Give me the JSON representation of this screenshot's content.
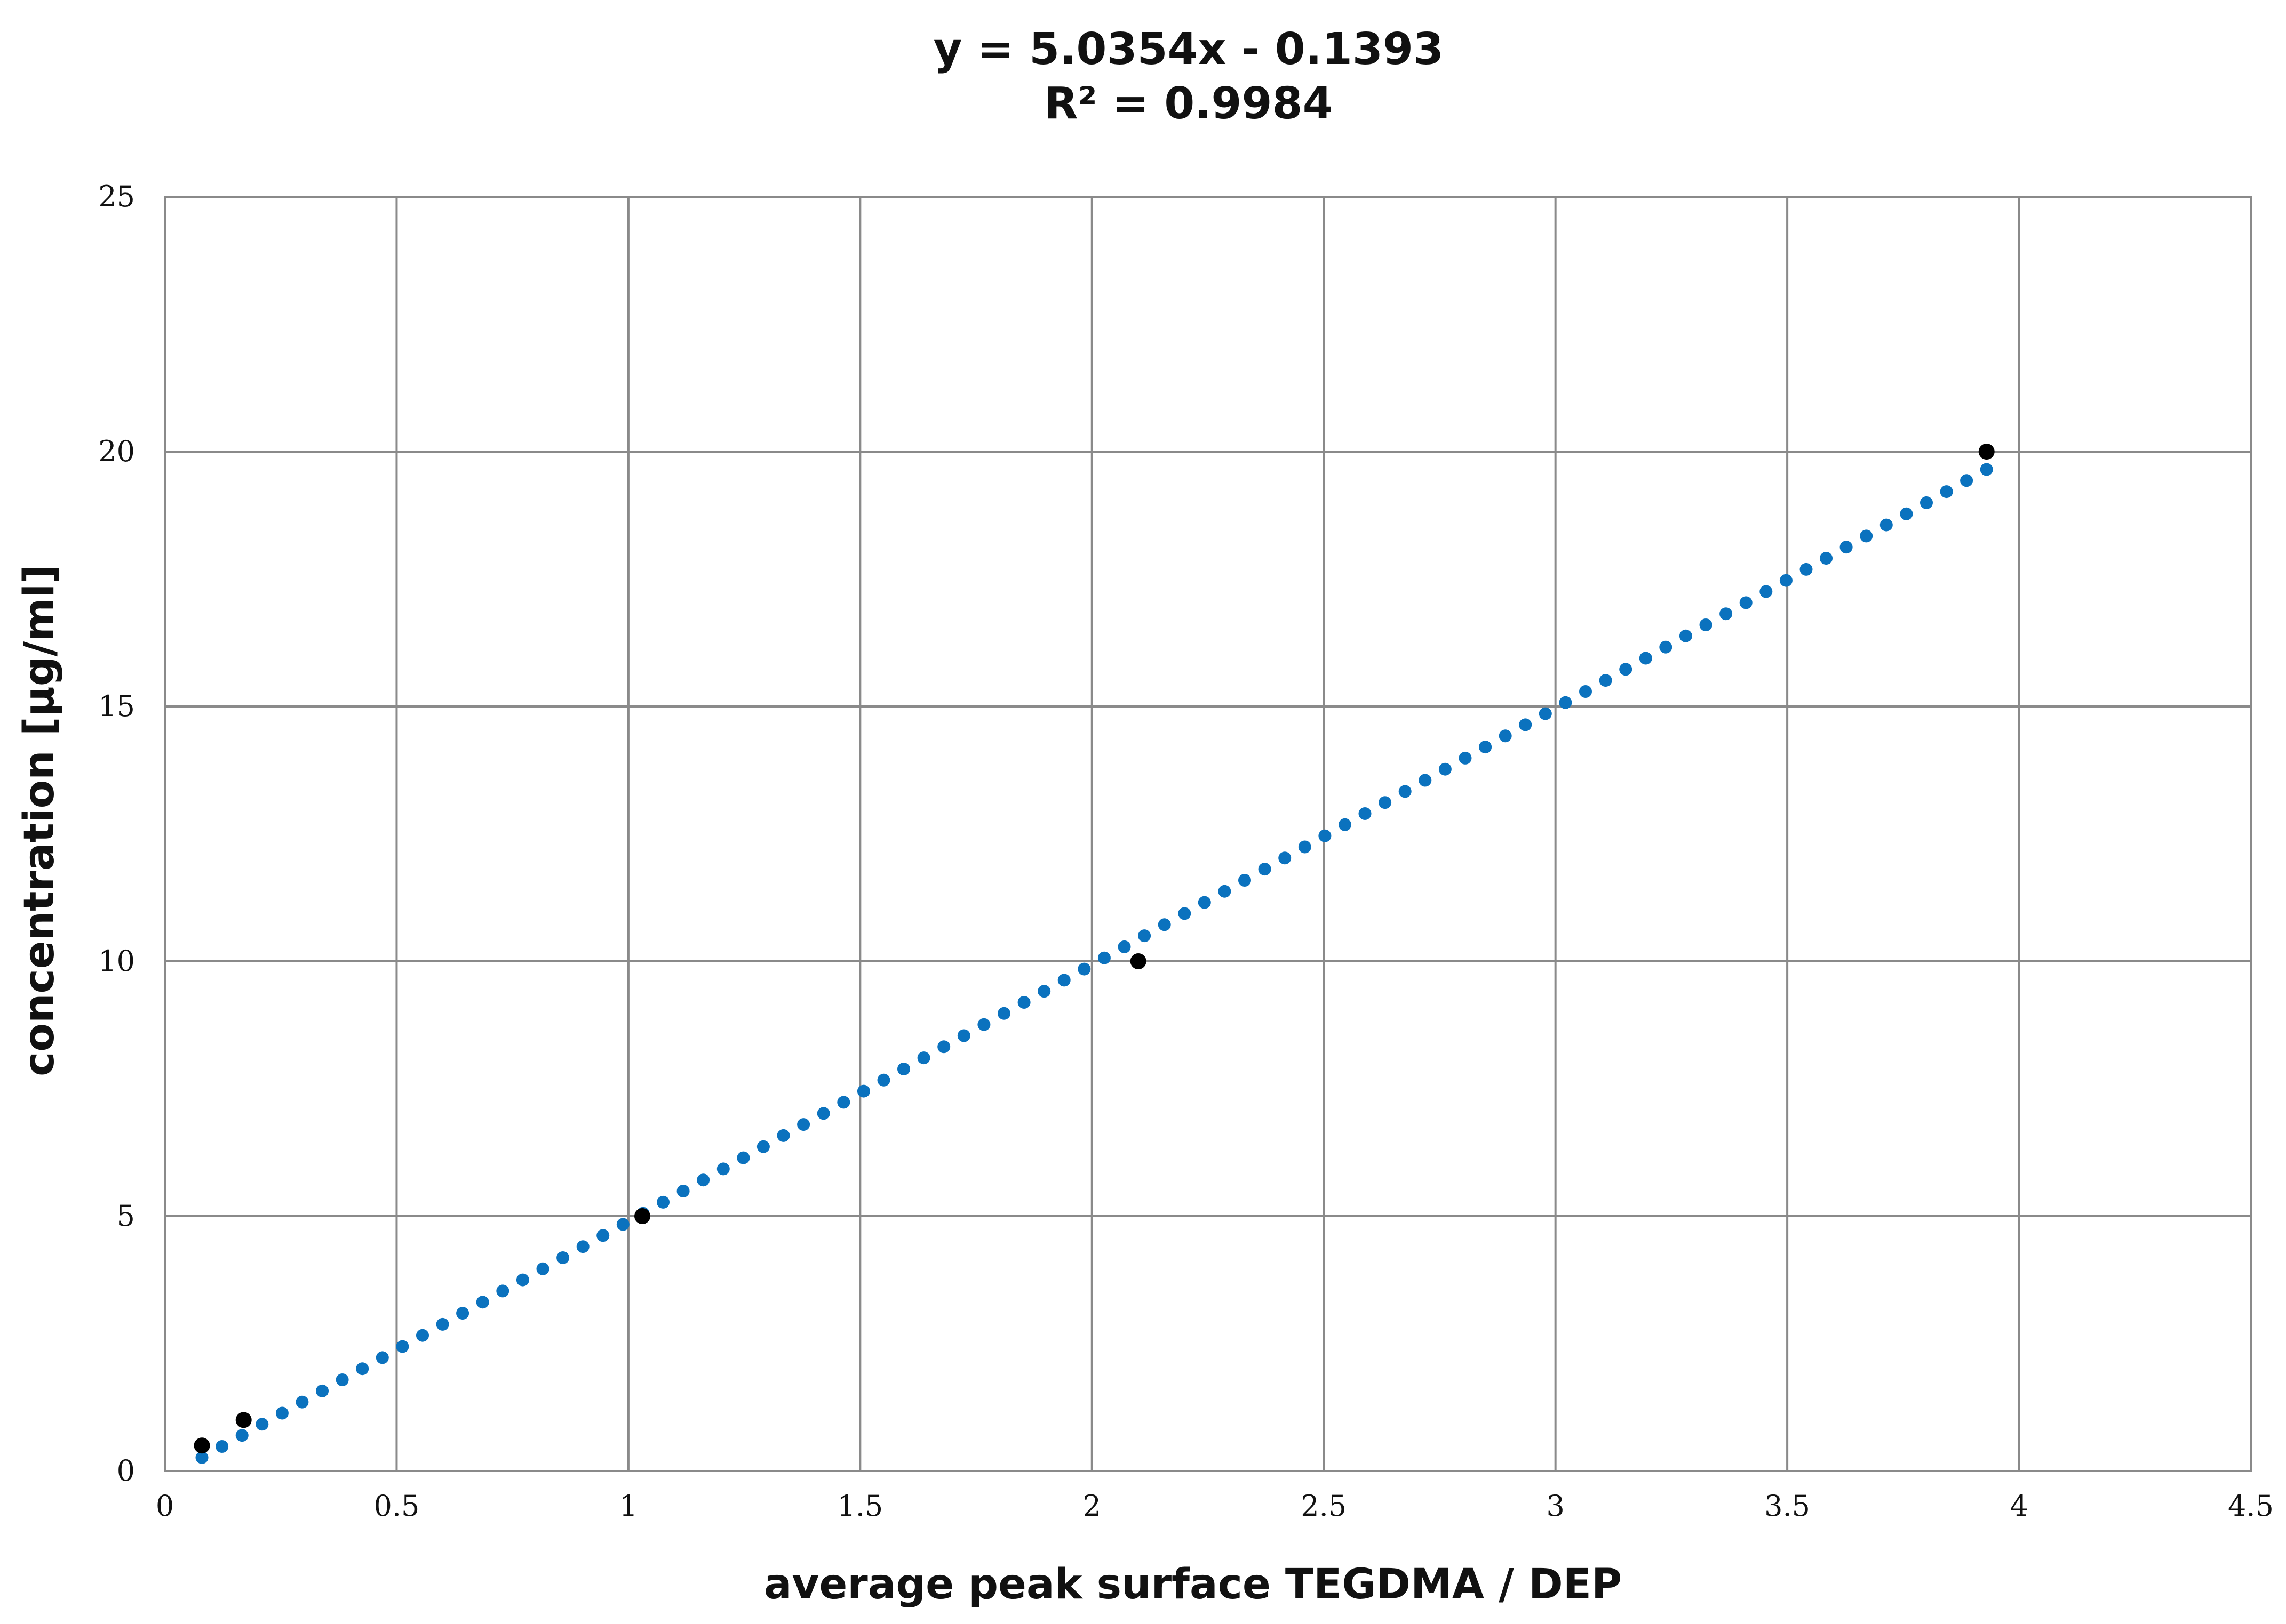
{
  "chart_data": {
    "type": "scatter",
    "title_lines": [
      "y = 5.0354x - 0.1393",
      "R² = 0.9984"
    ],
    "xlabel": "average peak surface TEGDMA / DEP",
    "ylabel": "concentration [µg/ml]",
    "xlim": [
      0,
      4.5
    ],
    "ylim": [
      0,
      25
    ],
    "x_ticks": [
      0,
      0.5,
      1,
      1.5,
      2,
      2.5,
      3,
      3.5,
      4,
      4.5
    ],
    "x_tick_labels": [
      "0",
      "0.5",
      "1",
      "1.5",
      "2",
      "2.5",
      "3",
      "3.5",
      "4",
      "4.5"
    ],
    "y_ticks": [
      0,
      5,
      10,
      15,
      20,
      25
    ],
    "y_tick_labels": [
      "0",
      "5",
      "10",
      "15",
      "20",
      "25"
    ],
    "grid": true,
    "series": [
      {
        "name": "measurements",
        "kind": "points",
        "color": "#000000",
        "x": [
          0.08,
          0.17,
          1.03,
          2.1,
          3.93
        ],
        "y": [
          0.5,
          1.0,
          5.0,
          10.0,
          20.0
        ]
      }
    ],
    "trendline": {
      "kind": "linear",
      "slope": 5.0354,
      "intercept": -0.1393,
      "x_range": [
        0.08,
        3.93
      ],
      "style": "dotted",
      "color": "#0b72be"
    }
  }
}
